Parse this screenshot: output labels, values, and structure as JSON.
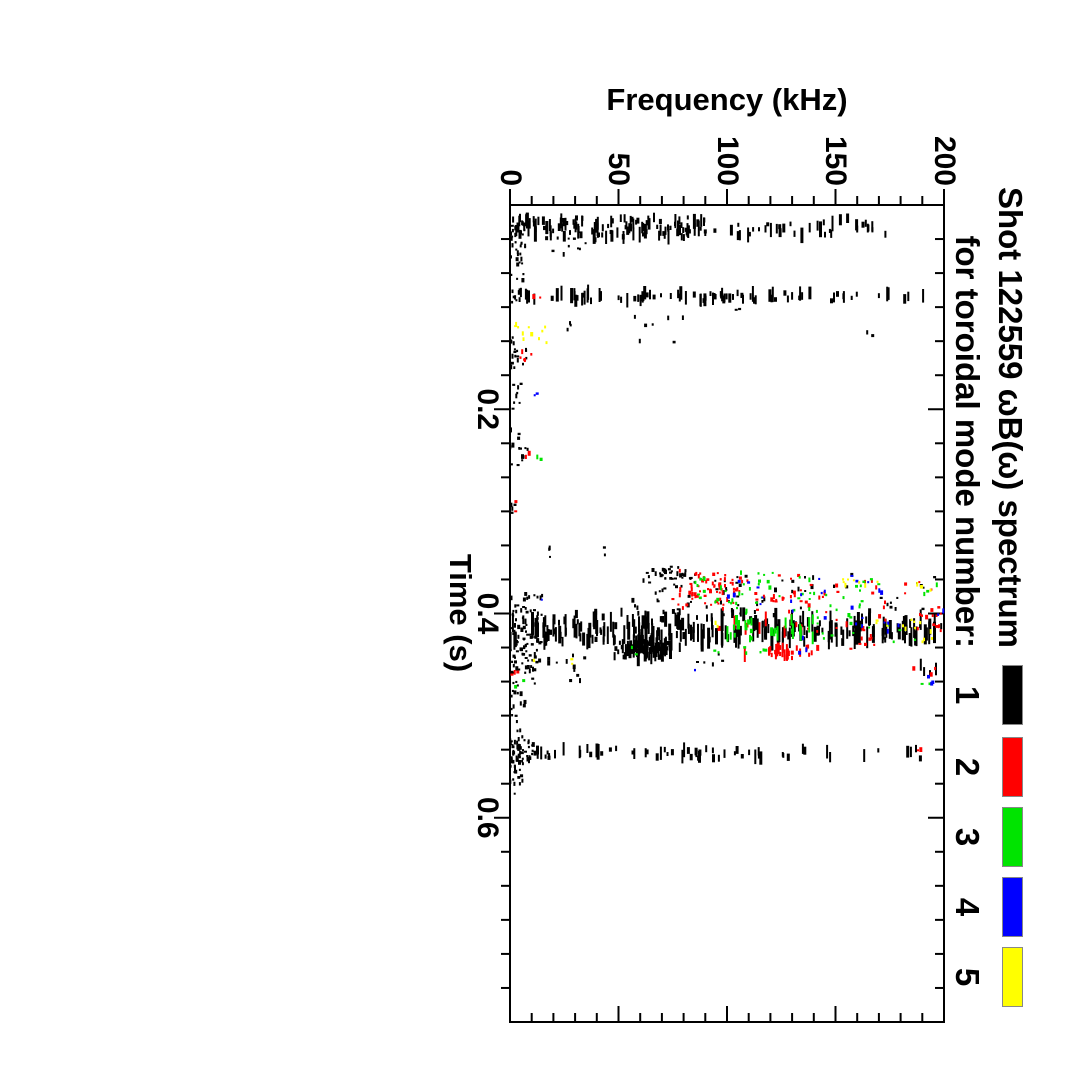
{
  "figure": {
    "background": "#ffffff",
    "title_line1": "Shot 122559 ωB(ω) spectrum",
    "title_line2": "for toroidal mode number:",
    "xlabel": "Time (s)",
    "ylabel": "Frequency (kHz)"
  },
  "chart_data": {
    "type": "scatter",
    "title": "Shot 122559 ωB(ω) spectrum for toroidal mode number:",
    "xlabel": "Time (s)",
    "ylabel": "Frequency (kHz)",
    "xlim": [
      0,
      0.8
    ],
    "ylim": [
      0,
      200
    ],
    "xticks": [
      0.2,
      0.4,
      0.6
    ],
    "xtick_labels": [
      "0.2",
      "0.4",
      "0.6"
    ],
    "yticks": [
      0,
      50,
      100,
      150,
      200
    ],
    "ytick_labels": [
      "0",
      "50",
      "100",
      "150",
      "200"
    ],
    "x_minor_divisions": 6,
    "y_minor_divisions": 5,
    "grid": false,
    "legend_position": "top-right beside title",
    "orientation": "landscape figure rotated 90 degrees clockwise on portrait page",
    "series": [
      {
        "name": "1",
        "color": "#000000",
        "clusters": [
          {
            "t": [
              0.012,
              0.032
            ],
            "f": [
              0,
              90
            ],
            "n": 130,
            "style": "dash"
          },
          {
            "t": [
              0.012,
              0.03
            ],
            "f": [
              90,
              178
            ],
            "n": 40,
            "style": "dash"
          },
          {
            "t": [
              0.018,
              0.075
            ],
            "f": [
              0,
              7
            ],
            "n": 32,
            "style": "dot"
          },
          {
            "t": [
              0.028,
              0.05
            ],
            "f": [
              16,
              42
            ],
            "n": 12,
            "style": "dot"
          },
          {
            "t": [
              0.085,
              0.094
            ],
            "f": [
              0,
              125
            ],
            "n": 75,
            "style": "dash"
          },
          {
            "t": [
              0.085,
              0.094
            ],
            "f": [
              125,
              196
            ],
            "n": 20,
            "style": "dash"
          },
          {
            "t": [
              0.08,
              0.21
            ],
            "f": [
              0,
              6
            ],
            "n": 22,
            "style": "dot"
          },
          {
            "t": [
              0.105,
              0.135
            ],
            "f": [
              55,
              82
            ],
            "n": 7,
            "style": "dot"
          },
          {
            "t": [
              0.115,
              0.13
            ],
            "f": [
              20,
              30
            ],
            "n": 3,
            "style": "dot"
          },
          {
            "t": [
              0.122,
              0.128
            ],
            "f": [
              164,
              168
            ],
            "n": 2,
            "style": "dot"
          },
          {
            "t": [
              0.099,
              0.104
            ],
            "f": [
              102,
              106
            ],
            "n": 2,
            "style": "dot"
          },
          {
            "t": [
              0.14,
              0.155
            ],
            "f": [
              0,
              8
            ],
            "n": 8,
            "style": "dot"
          },
          {
            "t": [
              0.178,
              0.19
            ],
            "f": [
              2,
              7
            ],
            "n": 3,
            "style": "dot"
          },
          {
            "t": [
              0.21,
              0.33
            ],
            "f": [
              0,
              5
            ],
            "n": 12,
            "style": "dot"
          },
          {
            "t": [
              0.238,
              0.252
            ],
            "f": [
              2,
              9
            ],
            "n": 6,
            "style": "dot"
          },
          {
            "t": [
              0.33,
              0.347
            ],
            "f": [
              17,
              24
            ],
            "n": 3,
            "style": "dot"
          },
          {
            "t": [
              0.335,
              0.345
            ],
            "f": [
              40,
              44
            ],
            "n": 2,
            "style": "dot"
          },
          {
            "t": [
              0.352,
              0.372
            ],
            "f": [
              58,
              90
            ],
            "n": 30,
            "style": "dot",
            "clump": true
          },
          {
            "t": [
              0.36,
              0.402
            ],
            "f": [
              55,
              145
            ],
            "n": 55,
            "style": "dot"
          },
          {
            "t": [
              0.362,
              0.398
            ],
            "f": [
              145,
              200
            ],
            "n": 15,
            "style": "dot"
          },
          {
            "t": [
              0.398,
              0.41
            ],
            "f": [
              25,
              120
            ],
            "n": 25,
            "style": "dash"
          },
          {
            "t": [
              0.405,
              0.418
            ],
            "f": [
              0,
              200
            ],
            "n": 110,
            "style": "streak"
          },
          {
            "t": [
              0.416,
              0.428
            ],
            "f": [
              0,
              200
            ],
            "n": 130,
            "style": "streak"
          },
          {
            "t": [
              0.424,
              0.444
            ],
            "f": [
              45,
              80
            ],
            "n": 110,
            "style": "dash",
            "clump": true
          },
          {
            "t": [
              0.38,
              0.46
            ],
            "f": [
              0,
              15
            ],
            "n": 90,
            "style": "dot"
          },
          {
            "t": [
              0.44,
              0.47
            ],
            "f": [
              10,
              35
            ],
            "n": 15,
            "style": "dot"
          },
          {
            "t": [
              0.438,
              0.45
            ],
            "f": [
              85,
              100
            ],
            "n": 5,
            "style": "dot"
          },
          {
            "t": [
              0.45,
              0.46
            ],
            "f": [
              188,
              199
            ],
            "n": 4,
            "style": "dash"
          },
          {
            "t": [
              0.46,
              0.525
            ],
            "f": [
              0,
              7
            ],
            "n": 22,
            "style": "dot"
          },
          {
            "t": [
              0.525,
              0.548
            ],
            "f": [
              0,
              12
            ],
            "n": 45,
            "style": "dot"
          },
          {
            "t": [
              0.532,
              0.542
            ],
            "f": [
              12,
              120
            ],
            "n": 50,
            "style": "dash"
          },
          {
            "t": [
              0.532,
              0.542
            ],
            "f": [
              120,
              192
            ],
            "n": 14,
            "style": "dash"
          },
          {
            "t": [
              0.548,
              0.578
            ],
            "f": [
              0,
              6
            ],
            "n": 16,
            "style": "dot"
          }
        ]
      },
      {
        "name": "2",
        "color": "#ff0000",
        "clusters": [
          {
            "t": [
              0.087,
              0.092
            ],
            "f": [
              10,
              14
            ],
            "n": 2,
            "style": "dot"
          },
          {
            "t": [
              0.142,
              0.152
            ],
            "f": [
              3,
              10
            ],
            "n": 5,
            "style": "dot"
          },
          {
            "t": [
              0.24,
              0.248
            ],
            "f": [
              6,
              9
            ],
            "n": 2,
            "style": "dot"
          },
          {
            "t": [
              0.29,
              0.3
            ],
            "f": [
              1,
              4
            ],
            "n": 2,
            "style": "dot"
          },
          {
            "t": [
              0.355,
              0.398
            ],
            "f": [
              72,
              112
            ],
            "n": 70,
            "style": "dot",
            "clump": true
          },
          {
            "t": [
              0.362,
              0.4
            ],
            "f": [
              112,
              152
            ],
            "n": 30,
            "style": "dot"
          },
          {
            "t": [
              0.368,
              0.4
            ],
            "f": [
              152,
              200
            ],
            "n": 12,
            "style": "dot"
          },
          {
            "t": [
              0.4,
              0.418
            ],
            "f": [
              135,
              200
            ],
            "n": 22,
            "style": "dot"
          },
          {
            "t": [
              0.405,
              0.42
            ],
            "f": [
              95,
              135
            ],
            "n": 10,
            "style": "dash"
          },
          {
            "t": [
              0.43,
              0.448
            ],
            "f": [
              105,
              152
            ],
            "n": 30,
            "style": "dash",
            "clump": true
          },
          {
            "t": [
              0.42,
              0.435
            ],
            "f": [
              152,
              172
            ],
            "n": 8,
            "style": "dot"
          },
          {
            "t": [
              0.452,
              0.46
            ],
            "f": [
              186,
              196
            ],
            "n": 3,
            "style": "dot"
          },
          {
            "t": [
              0.455,
              0.465
            ],
            "f": [
              0,
              6
            ],
            "n": 3,
            "style": "dot"
          },
          {
            "t": [
              0.533,
              0.54
            ],
            "f": [
              182,
              190
            ],
            "n": 2,
            "style": "dot"
          }
        ]
      },
      {
        "name": "3",
        "color": "#00e400",
        "clusters": [
          {
            "t": [
              0.245,
              0.252
            ],
            "f": [
              11,
              15
            ],
            "n": 2,
            "style": "dot"
          },
          {
            "t": [
              0.36,
              0.4
            ],
            "f": [
              85,
              140
            ],
            "n": 42,
            "style": "dot"
          },
          {
            "t": [
              0.365,
              0.405
            ],
            "f": [
              140,
              172
            ],
            "n": 18,
            "style": "dot"
          },
          {
            "t": [
              0.368,
              0.385
            ],
            "f": [
              188,
              199
            ],
            "n": 3,
            "style": "dot"
          },
          {
            "t": [
              0.405,
              0.425
            ],
            "f": [
              100,
              140
            ],
            "n": 26,
            "style": "dash"
          },
          {
            "t": [
              0.408,
              0.428
            ],
            "f": [
              140,
              188
            ],
            "n": 12,
            "style": "dot"
          },
          {
            "t": [
              0.428,
              0.44
            ],
            "f": [
              108,
              122
            ],
            "n": 5,
            "style": "dot"
          },
          {
            "t": [
              0.436,
              0.444
            ],
            "f": [
              92,
              98
            ],
            "n": 2,
            "style": "dot"
          },
          {
            "t": [
              0.43,
              0.44
            ],
            "f": [
              55,
              62
            ],
            "n": 2,
            "style": "dot"
          },
          {
            "t": [
              0.462,
              0.472
            ],
            "f": [
              2,
              8
            ],
            "n": 2,
            "style": "dot"
          },
          {
            "t": [
              0.465,
              0.472
            ],
            "f": [
              186,
              194
            ],
            "n": 2,
            "style": "dot"
          }
        ]
      },
      {
        "name": "4",
        "color": "#0000ff",
        "clusters": [
          {
            "t": [
              0.183,
              0.19
            ],
            "f": [
              10,
              13
            ],
            "n": 2,
            "style": "dot"
          },
          {
            "t": [
              0.36,
              0.398
            ],
            "f": [
              100,
              158
            ],
            "n": 15,
            "style": "dot"
          },
          {
            "t": [
              0.368,
              0.386
            ],
            "f": [
              158,
              178
            ],
            "n": 4,
            "style": "dot"
          },
          {
            "t": [
              0.382,
              0.388
            ],
            "f": [
              14,
              17
            ],
            "n": 1,
            "style": "dot"
          },
          {
            "t": [
              0.402,
              0.418
            ],
            "f": [
              140,
              182
            ],
            "n": 8,
            "style": "dot"
          },
          {
            "t": [
              0.415,
              0.425
            ],
            "f": [
              132,
              138
            ],
            "n": 2,
            "style": "dot"
          },
          {
            "t": [
              0.432,
              0.44
            ],
            "f": [
              130,
              137
            ],
            "n": 2,
            "style": "dot"
          },
          {
            "t": [
              0.455,
              0.462
            ],
            "f": [
              85,
              90
            ],
            "n": 1,
            "style": "dot"
          },
          {
            "t": [
              0.46,
              0.47
            ],
            "f": [
              192,
              199
            ],
            "n": 3,
            "style": "dot"
          },
          {
            "t": [
              0.395,
              0.402
            ],
            "f": [
              195,
              200
            ],
            "n": 2,
            "style": "dot"
          }
        ]
      },
      {
        "name": "5",
        "color": "#ffff00",
        "clusters": [
          {
            "t": [
              0.115,
              0.135
            ],
            "f": [
              4,
              17
            ],
            "n": 8,
            "style": "dot"
          },
          {
            "t": [
              0.115,
              0.125
            ],
            "f": [
              2,
              6
            ],
            "n": 3,
            "style": "dot"
          },
          {
            "t": [
              0.362,
              0.386
            ],
            "f": [
              150,
              172
            ],
            "n": 8,
            "style": "dot"
          },
          {
            "t": [
              0.368,
              0.378
            ],
            "f": [
              186,
              197
            ],
            "n": 4,
            "style": "dot"
          },
          {
            "t": [
              0.402,
              0.418
            ],
            "f": [
              160,
              197
            ],
            "n": 10,
            "style": "dot"
          },
          {
            "t": [
              0.408,
              0.414
            ],
            "f": [
              94,
              100
            ],
            "n": 2,
            "style": "dot"
          },
          {
            "t": [
              0.42,
              0.432
            ],
            "f": [
              190,
              198
            ],
            "n": 3,
            "style": "dot"
          },
          {
            "t": [
              0.443,
              0.45
            ],
            "f": [
              28,
              33
            ],
            "n": 2,
            "style": "dot"
          },
          {
            "t": [
              0.443,
              0.45
            ],
            "f": [
              8,
              12
            ],
            "n": 2,
            "style": "dot"
          }
        ]
      }
    ]
  }
}
